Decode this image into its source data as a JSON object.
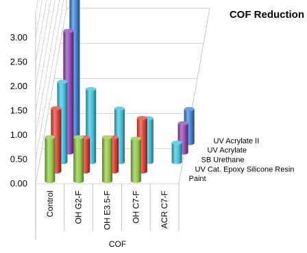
{
  "chart_data": {
    "type": "bar",
    "style": "3d-cylinder",
    "title": "COF Reduction",
    "xlabel": "COF",
    "ylabel": "",
    "ylim": [
      0,
      3.5
    ],
    "yticks": [
      "0.00",
      "0.50",
      "1.00",
      "1.50",
      "2.00",
      "2.50",
      "3.00"
    ],
    "grid": true,
    "legend": "depth-axis",
    "categories": [
      "Control",
      "OH G2-F",
      "OH E3.5-F",
      "OH C7-F",
      "ACR C7-F"
    ],
    "series": [
      {
        "name": "Paint",
        "color": "#8dc63f",
        "values": [
          0.9,
          0.9,
          0.9,
          0.87,
          null
        ]
      },
      {
        "name": "UV Cat. Epoxy Silicone Resin",
        "color": "#e03c31",
        "values": [
          1.3,
          0.7,
          0.7,
          1.1,
          null
        ]
      },
      {
        "name": "SB Urethane",
        "color": "#35c0dc",
        "values": [
          1.65,
          1.5,
          1.1,
          0.9,
          0.4
        ]
      },
      {
        "name": "UV Acrylate",
        "color": "#8e44ad",
        "values": [
          2.5,
          null,
          null,
          null,
          0.6
        ]
      },
      {
        "name": "UV Acrylate II",
        "color": "#3a7fd5",
        "values": [
          3.5,
          null,
          null,
          null,
          0.7
        ]
      }
    ]
  }
}
